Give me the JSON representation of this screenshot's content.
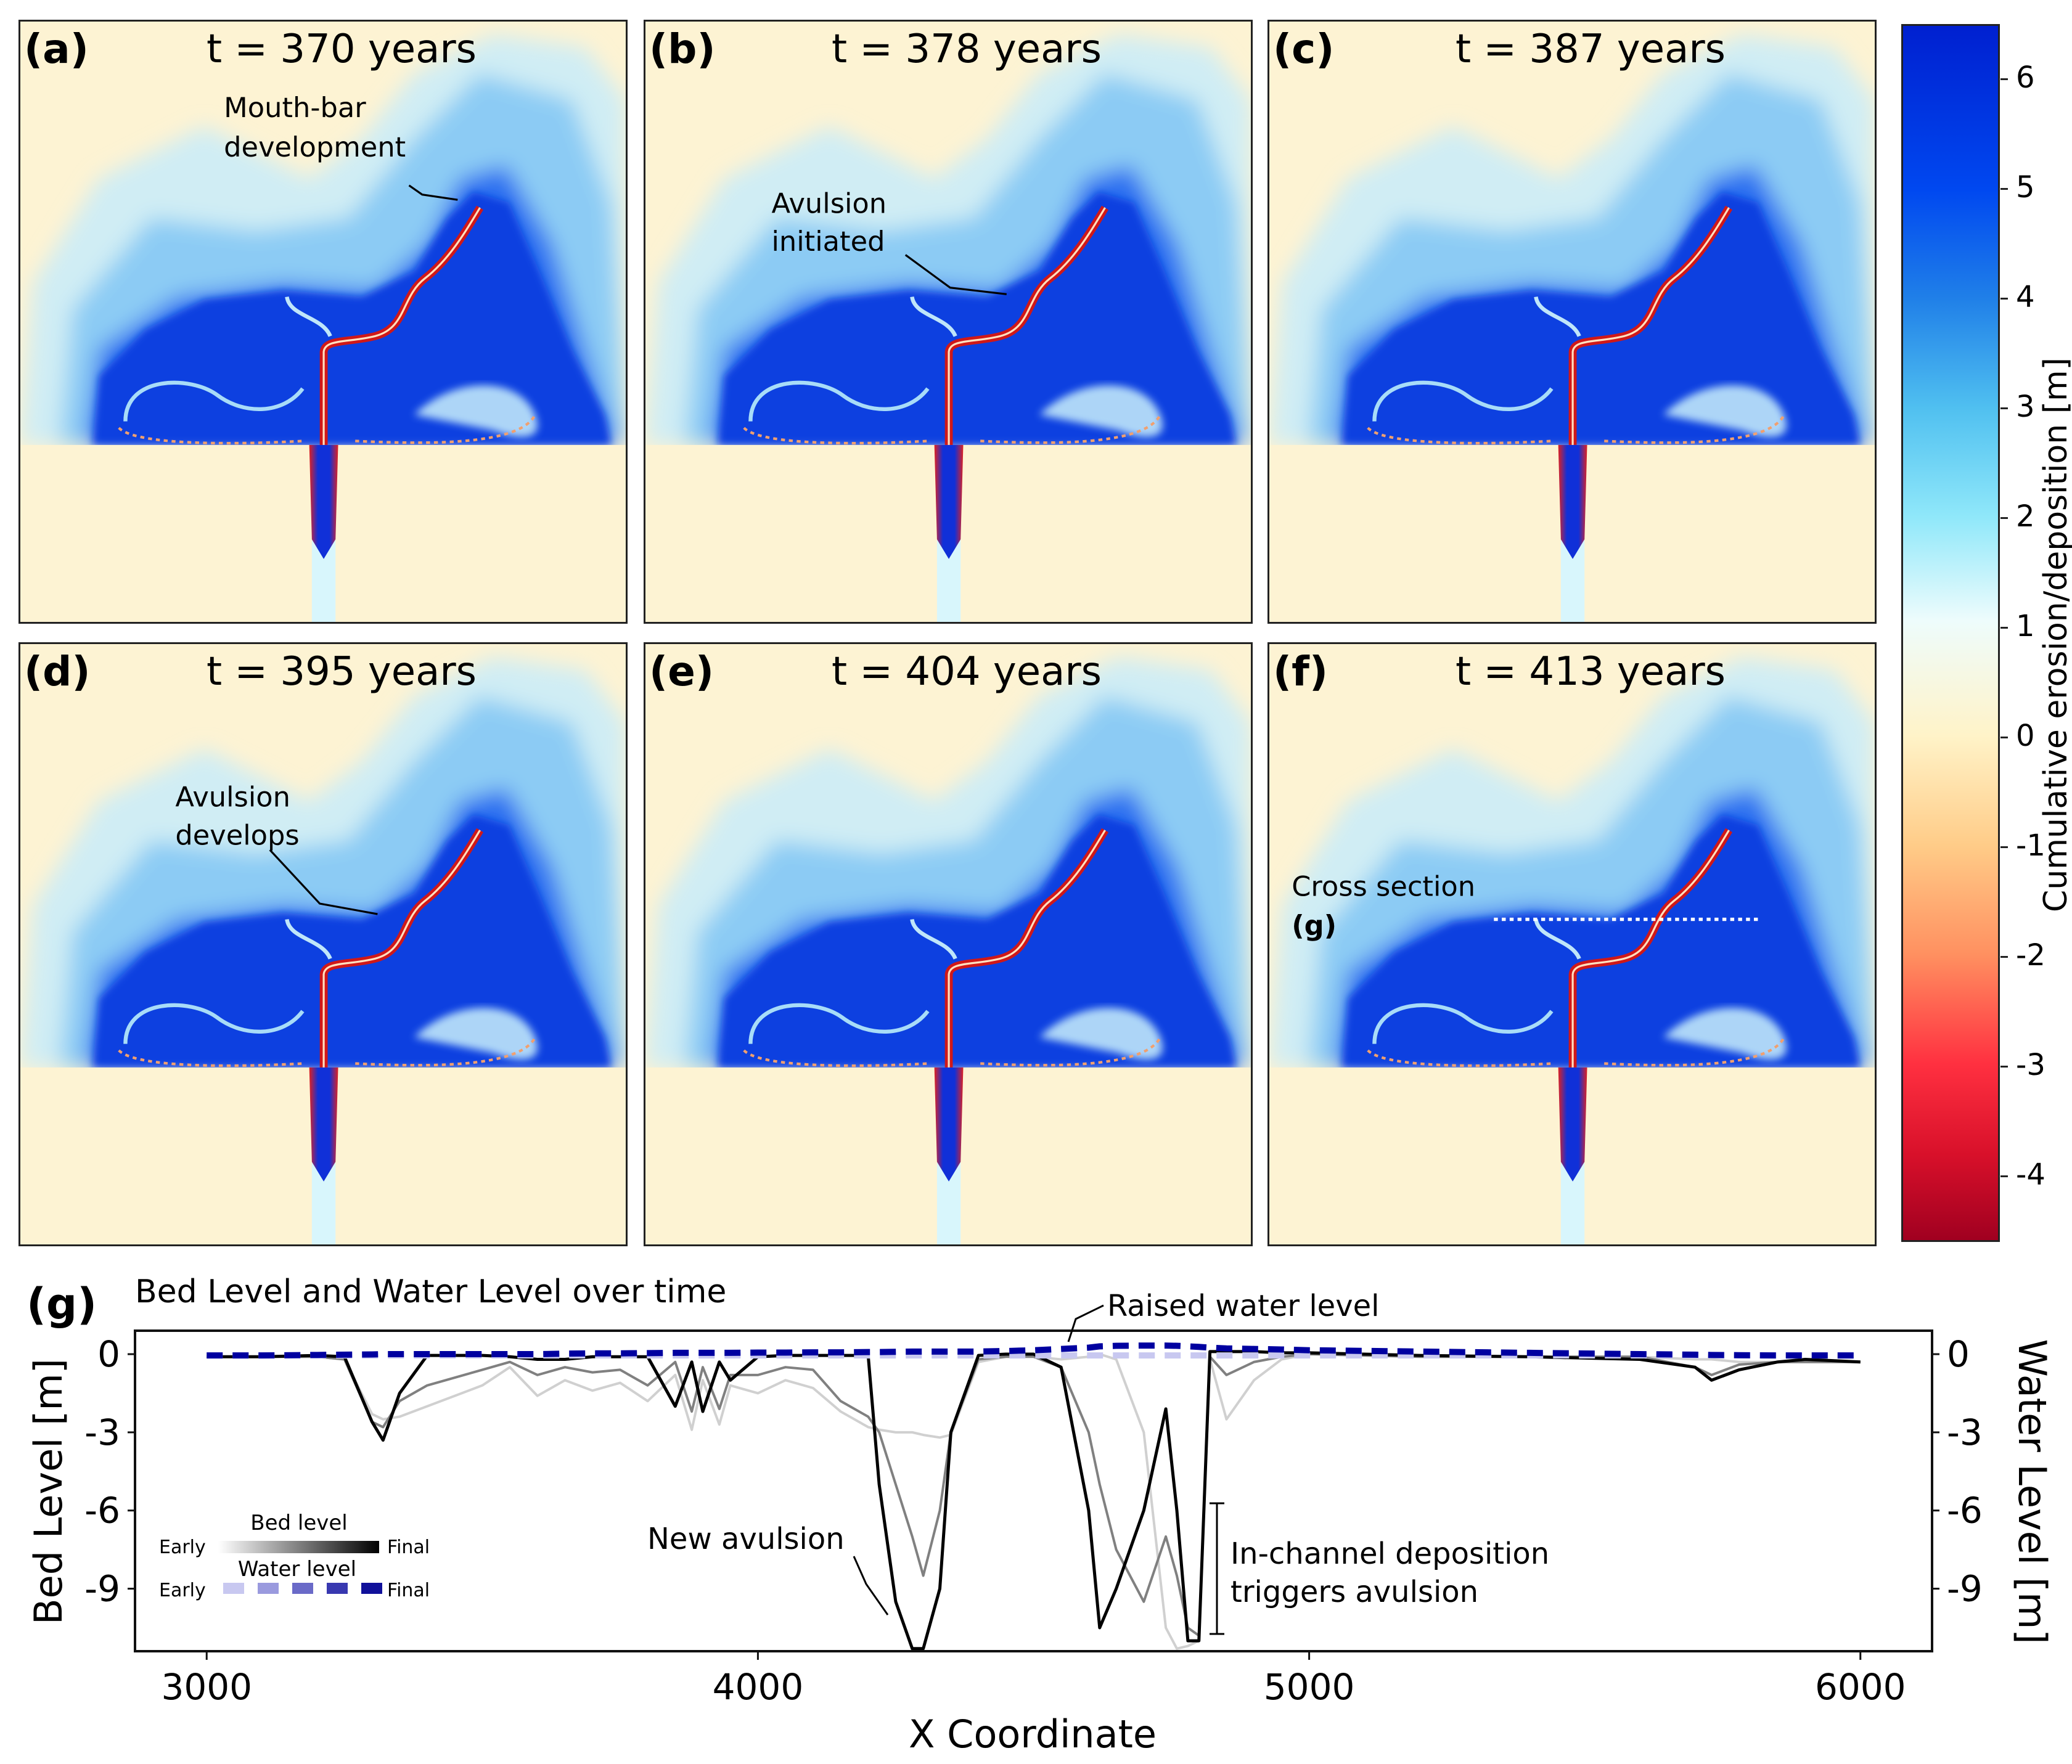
{
  "panels": [
    {
      "label": "(a)",
      "time": "t = 370 years",
      "annotation": [
        "Mouth-bar",
        "development"
      ]
    },
    {
      "label": "(b)",
      "time": "t = 378 years",
      "annotation": [
        "Avulsion",
        "initiated"
      ]
    },
    {
      "label": "(c)",
      "time": "t = 387 years"
    },
    {
      "label": "(d)",
      "time": "t = 395 years",
      "annotation": [
        "Avulsion",
        "develops"
      ]
    },
    {
      "label": "(e)",
      "time": "t = 404 years"
    },
    {
      "label": "(f)",
      "time": "t = 413 years",
      "annotation": [
        "Cross section",
        "(g)"
      ]
    }
  ],
  "colorbar": {
    "label": "Cumulative erosion/deposition [m]",
    "ticks": [
      "6",
      "5",
      "4",
      "3",
      "2",
      "1",
      "0",
      "-1",
      "-2",
      "-3",
      "-4"
    ],
    "range": [
      -4.6,
      6.5
    ],
    "colormap": "diverging red-yellow-blue (RdYlBu)",
    "colors": {
      "max": "#0020d0",
      "zero": "#fff3c8",
      "min": "#a00020"
    }
  },
  "chart_data": {
    "type": "line",
    "panel_label": "(g)",
    "title": "Bed Level and Water Level over time",
    "xlabel": "X Coordinate",
    "ylabel": "Bed Level [m]",
    "ylabel_right": "Water Level [m]",
    "xlim": [
      2870,
      6130
    ],
    "ylim": [
      -11.4,
      0.9
    ],
    "xticks": [
      "3000",
      "4000",
      "5000",
      "6000"
    ],
    "yticks": [
      "0",
      "-3",
      "-6",
      "-9"
    ],
    "yticks_right": [
      "0",
      "-3",
      "-6",
      "-9"
    ],
    "grid": false,
    "legend": {
      "placement": "bottom-left",
      "bed_title": "Bed level",
      "water_title": "Water level",
      "early": "Early",
      "final": "Final"
    },
    "annotations": {
      "raised_water": "Raised water level",
      "new_avulsion": "New avulsion",
      "deposition": [
        "In-channel deposition",
        "triggers avulsion"
      ]
    },
    "x": [
      3000,
      3100,
      3200,
      3250,
      3300,
      3320,
      3350,
      3400,
      3500,
      3550,
      3600,
      3650,
      3700,
      3750,
      3800,
      3850,
      3880,
      3900,
      3930,
      3950,
      4000,
      4050,
      4100,
      4150,
      4200,
      4220,
      4250,
      4280,
      4300,
      4330,
      4350,
      4400,
      4450,
      4500,
      4550,
      4600,
      4620,
      4650,
      4700,
      4740,
      4760,
      4780,
      4800,
      4820,
      4850,
      4900,
      4950,
      5000,
      5200,
      5400,
      5600,
      5700,
      5730,
      5780,
      5850,
      5900,
      6000
    ],
    "bed_series": [
      {
        "stage": "early",
        "color": "#d0d0d0",
        "values": [
          -0.1,
          -0.1,
          -0.1,
          -0.2,
          -2.3,
          -2.5,
          -2.4,
          -2.0,
          -1.2,
          -0.5,
          -1.6,
          -1.0,
          -1.4,
          -1.1,
          -1.8,
          -0.8,
          -2.9,
          -1.0,
          -2.7,
          -1.2,
          -1.5,
          -1.0,
          -1.3,
          -2.2,
          -2.8,
          -2.9,
          -3.0,
          -3.0,
          -3.1,
          -3.2,
          -3.1,
          -0.3,
          -0.1,
          -0.1,
          -0.2,
          -0.1,
          0.0,
          -0.2,
          -3.0,
          -10.5,
          -11.3,
          -11.2,
          -11.0,
          -0.2,
          -2.5,
          -1.0,
          -0.2,
          0.0,
          -0.1,
          -0.1,
          -0.1,
          -0.2,
          -0.2,
          -0.3,
          -0.3,
          -0.3,
          -0.3
        ]
      },
      {
        "stage": "mid",
        "color": "#808080",
        "values": [
          -0.1,
          -0.1,
          -0.1,
          -0.2,
          -2.6,
          -2.8,
          -1.8,
          -1.2,
          -0.6,
          -0.3,
          -0.8,
          -0.5,
          -0.7,
          -0.6,
          -1.2,
          -0.3,
          -2.2,
          -0.5,
          -2.1,
          -0.8,
          -0.8,
          -0.5,
          -0.6,
          -1.8,
          -2.4,
          -3.0,
          -5.0,
          -7.0,
          -8.5,
          -6.0,
          -3.0,
          -0.2,
          -0.1,
          -0.1,
          -0.5,
          -3.0,
          -5.0,
          -7.5,
          -9.5,
          -7.0,
          -8.5,
          -10.5,
          -10.8,
          -0.1,
          -0.8,
          -0.3,
          -0.1,
          0.0,
          -0.1,
          -0.1,
          -0.1,
          -0.5,
          -0.8,
          -0.4,
          -0.3,
          -0.3,
          -0.3
        ]
      },
      {
        "stage": "final",
        "color": "#000000",
        "values": [
          -0.1,
          -0.1,
          -0.05,
          -0.1,
          -2.6,
          -3.3,
          -1.5,
          -0.05,
          -0.05,
          -0.1,
          -0.2,
          -0.2,
          -0.1,
          -0.1,
          -0.1,
          -2.0,
          -0.3,
          -2.2,
          -0.3,
          -1.0,
          -0.1,
          -0.05,
          -0.05,
          -0.05,
          -0.05,
          -5.0,
          -9.5,
          -11.3,
          -11.3,
          -9.0,
          -3.0,
          -0.05,
          0.0,
          0.0,
          -0.5,
          -6.0,
          -10.5,
          -9.0,
          -6.0,
          -2.1,
          -6.0,
          -11.0,
          -11.0,
          0.1,
          0.1,
          0.1,
          0.05,
          0.05,
          -0.05,
          -0.1,
          -0.2,
          -0.5,
          -1.0,
          -0.6,
          -0.3,
          -0.2,
          -0.3
        ]
      }
    ],
    "water_series": [
      {
        "stage": "early",
        "color": "#c8c8f0",
        "values": [
          -0.05,
          -0.05,
          -0.05,
          -0.05,
          -0.05,
          -0.05,
          -0.05,
          -0.05,
          -0.05,
          -0.05,
          -0.05,
          -0.05,
          -0.05,
          -0.05,
          -0.05,
          -0.05,
          -0.05,
          -0.05,
          -0.05,
          -0.05,
          -0.05,
          -0.05,
          -0.05,
          -0.05,
          -0.05,
          -0.05,
          -0.05,
          -0.05,
          -0.05,
          -0.05,
          -0.05,
          -0.05,
          -0.05,
          -0.05,
          -0.05,
          -0.05,
          -0.05,
          -0.05,
          -0.05,
          -0.05,
          -0.05,
          -0.05,
          -0.05,
          -0.05,
          -0.05,
          -0.05,
          -0.05,
          -0.05,
          -0.05,
          -0.05,
          -0.05,
          -0.05,
          -0.05,
          -0.05,
          -0.05,
          -0.05,
          -0.05
        ]
      },
      {
        "stage": "final",
        "color": "#0000a0",
        "values": [
          -0.05,
          -0.05,
          -0.03,
          -0.02,
          -0.01,
          0.0,
          0.0,
          0.0,
          0.0,
          0.0,
          0.0,
          0.02,
          0.03,
          0.03,
          0.04,
          0.05,
          0.05,
          0.05,
          0.05,
          0.05,
          0.06,
          0.06,
          0.07,
          0.07,
          0.08,
          0.08,
          0.09,
          0.1,
          0.1,
          0.1,
          0.1,
          0.1,
          0.12,
          0.15,
          0.2,
          0.25,
          0.3,
          0.32,
          0.33,
          0.33,
          0.32,
          0.3,
          0.28,
          0.25,
          0.22,
          0.2,
          0.18,
          0.15,
          0.1,
          0.05,
          0.0,
          -0.02,
          -0.03,
          -0.04,
          -0.05,
          -0.05,
          -0.05
        ]
      }
    ]
  }
}
